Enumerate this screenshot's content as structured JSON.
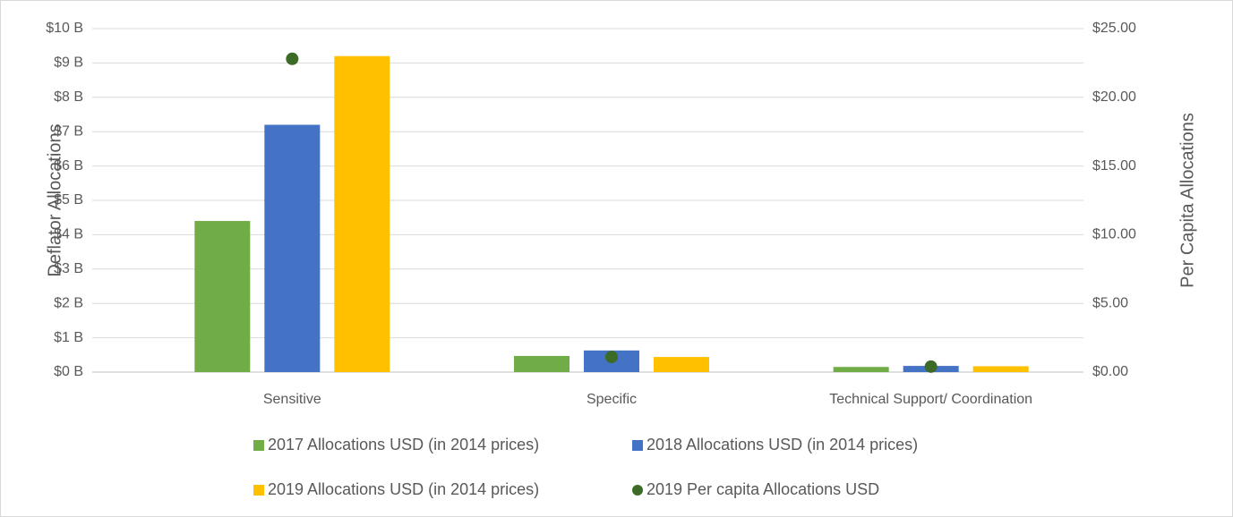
{
  "chart_data": {
    "type": "bar",
    "categories": [
      "Sensitive",
      "Specific",
      "Technical Support/ Coordination"
    ],
    "y_label": "Deflator Allocations",
    "y2_label": "Per Capita Allocations",
    "ylim": [
      0,
      10
    ],
    "yticks": [
      {
        "value": 0,
        "label": "$0 B"
      },
      {
        "value": 1,
        "label": "$1 B"
      },
      {
        "value": 2,
        "label": "$2 B"
      },
      {
        "value": 3,
        "label": "$3 B"
      },
      {
        "value": 4,
        "label": "$4 B"
      },
      {
        "value": 5,
        "label": "$5 B"
      },
      {
        "value": 6,
        "label": "$6 B"
      },
      {
        "value": 7,
        "label": "$7 B"
      },
      {
        "value": 8,
        "label": "$8 B"
      },
      {
        "value": 9,
        "label": "$9 B"
      },
      {
        "value": 10,
        "label": "$10 B"
      }
    ],
    "y2lim": [
      0,
      25
    ],
    "y2ticks": [
      {
        "value": 0,
        "label": "$0.00"
      },
      {
        "value": 5,
        "label": "$5.00"
      },
      {
        "value": 10,
        "label": "$10.00"
      },
      {
        "value": 15,
        "label": "$15.00"
      },
      {
        "value": 20,
        "label": "$20.00"
      },
      {
        "value": 25,
        "label": "$25.00"
      }
    ],
    "grid": true,
    "legend": "bottom",
    "series": [
      {
        "name": "2017 Allocations USD (in 2014 prices)",
        "color": "#70ad47",
        "type": "bar",
        "axis": "y",
        "values": [
          4.4,
          0.47,
          0.15
        ]
      },
      {
        "name": "2018 Allocations USD (in 2014 prices)",
        "color": "#4472c4",
        "type": "bar",
        "axis": "y",
        "values": [
          7.2,
          0.63,
          0.18
        ]
      },
      {
        "name": "2019 Allocations USD (in 2014 prices)",
        "color": "#ffc000",
        "type": "bar",
        "axis": "y",
        "values": [
          9.2,
          0.44,
          0.17
        ]
      },
      {
        "name": "2019 Per capita Allocations USD",
        "color": "#3b6b26",
        "type": "scatter",
        "axis": "y2",
        "values": [
          22.8,
          1.1,
          0.4
        ]
      }
    ]
  }
}
